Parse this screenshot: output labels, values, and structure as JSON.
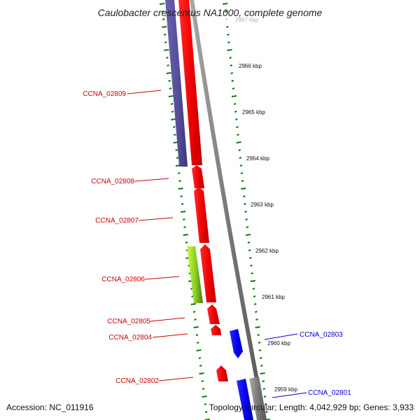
{
  "header": {
    "title": "Caulobacter crescentus NA1000, complete genome"
  },
  "footer": {
    "accession": "Accession: NC_011916",
    "summary": "Topology: circular; Length: 4,042,929 bp; Genes: 3,933"
  },
  "colors": {
    "forward_gene": "#ff0000",
    "reverse_gene": "#0000ee",
    "forward_label": "#cc0000",
    "reverse_label": "#0000cc",
    "rna_gene": "#554c99",
    "highlight_gene": "#99dd22",
    "backbone": "#888888",
    "ticks": "#117711"
  },
  "ruler": {
    "unit": "kbp",
    "labels": [
      "2967 kbp",
      "2966 kbp",
      "2965 kbp",
      "2964 kbp",
      "2963 kbp",
      "2962 kbp",
      "2961 kbp",
      "2960 kbp",
      "2959 kbp"
    ]
  },
  "genes": [
    {
      "name": "CCNA_02809",
      "strand": "+",
      "type": "rna"
    },
    {
      "name": "CCNA_02808",
      "strand": "+",
      "type": "cds"
    },
    {
      "name": "CCNA_02807",
      "strand": "+",
      "type": "cds"
    },
    {
      "name": "CCNA_02806",
      "strand": "+",
      "type": "cds-highlight"
    },
    {
      "name": "CCNA_02805",
      "strand": "+",
      "type": "cds"
    },
    {
      "name": "CCNA_02804",
      "strand": "+",
      "type": "cds"
    },
    {
      "name": "CCNA_02803",
      "strand": "-",
      "type": "cds"
    },
    {
      "name": "CCNA_02802",
      "strand": "+",
      "type": "cds"
    },
    {
      "name": "CCNA_02801",
      "strand": "-",
      "type": "cds"
    }
  ]
}
